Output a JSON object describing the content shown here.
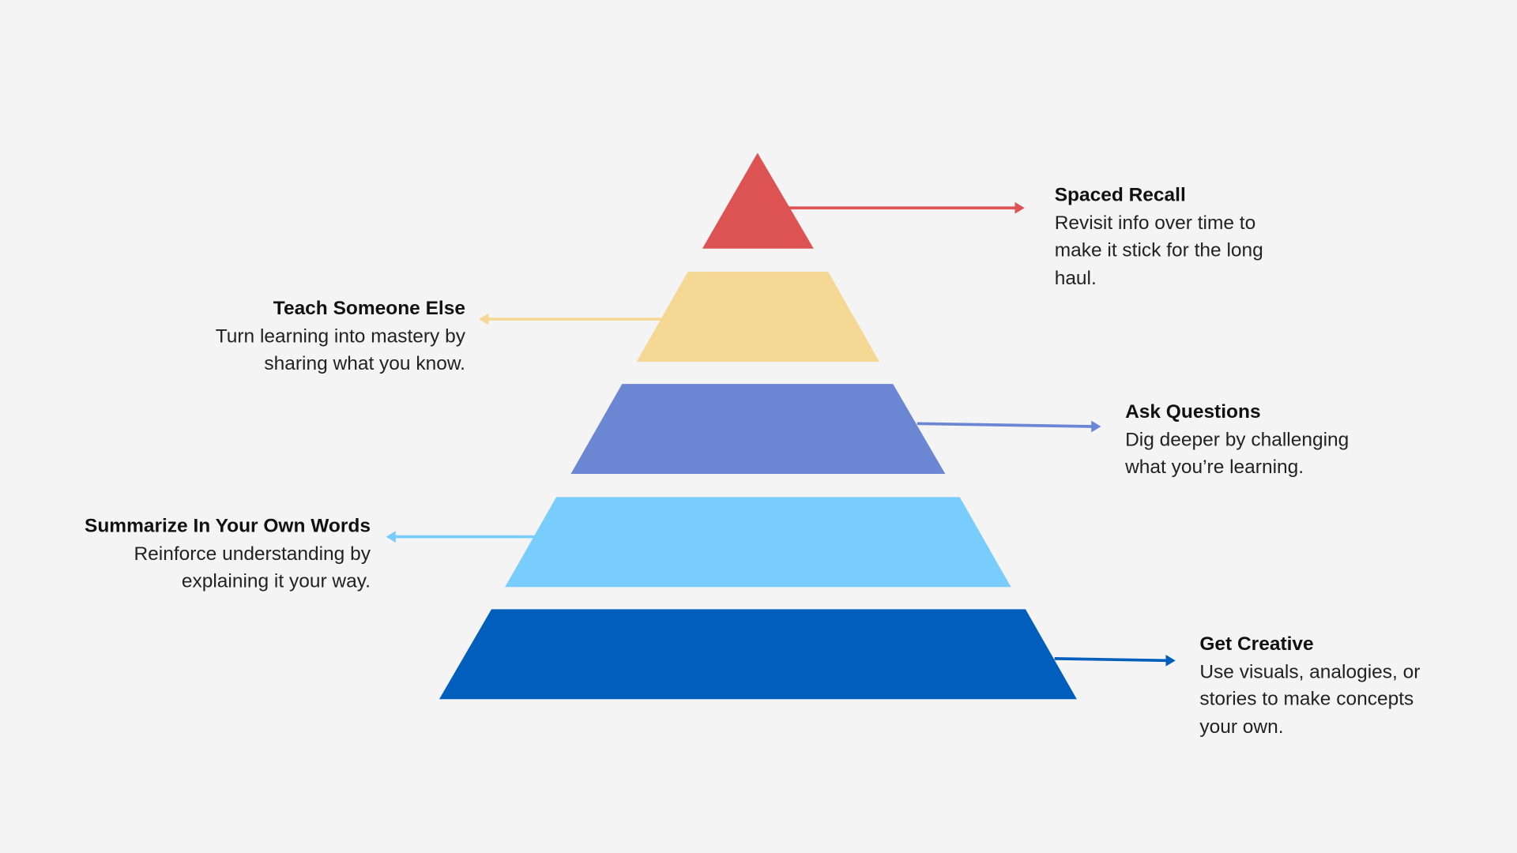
{
  "levels": [
    {
      "title": "Spaced Recall",
      "description": "Revisit info over time to make it stick for the long haul.",
      "color": "#dd5353"
    },
    {
      "title": "Teach Someone Else",
      "description": "Turn learning into mastery by sharing what you know.",
      "color": "#f5d894"
    },
    {
      "title": "Ask Questions",
      "description": "Dig deeper by challenging what you’re learning.",
      "color": "#6b86d3"
    },
    {
      "title": "Summarize In Your Own Words",
      "description": "Reinforce understanding by explaining it your way.",
      "color": "#79cdfd"
    },
    {
      "title": "Get Creative",
      "description": "Use visuals, analogies, or stories to make concepts your own.",
      "color": "#005ebd"
    }
  ]
}
